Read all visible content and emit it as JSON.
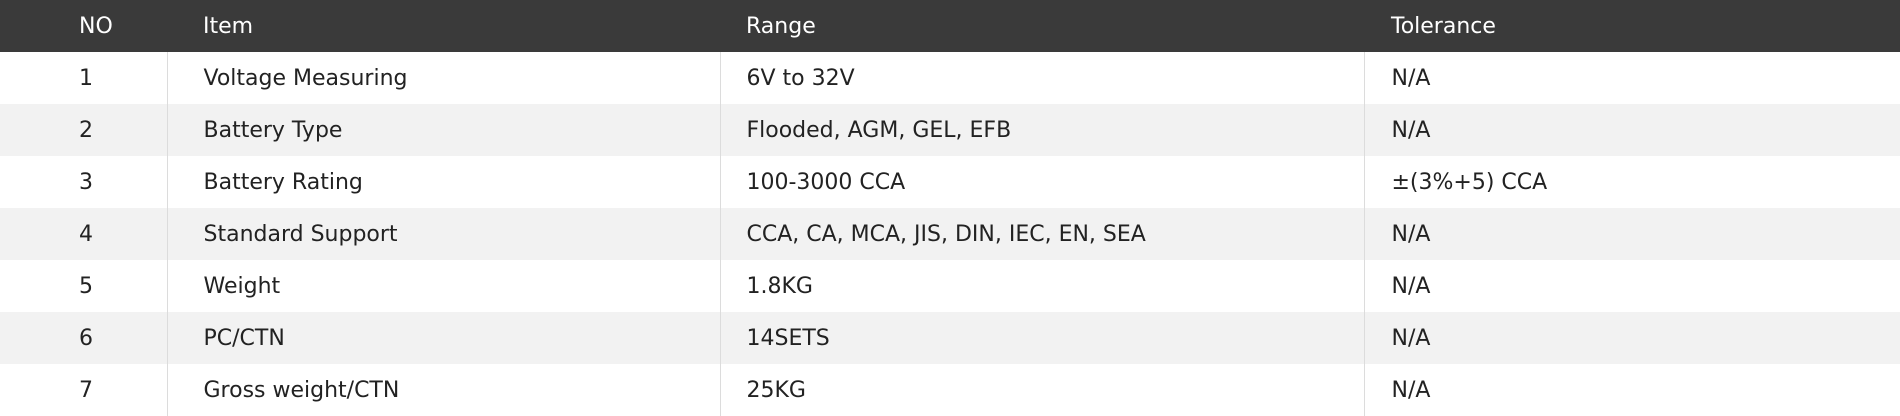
{
  "table": {
    "headers": [
      "NO",
      "Item",
      "Range",
      "Tolerance"
    ],
    "rows": [
      [
        "1",
        "Voltage Measuring",
        "6V to 32V",
        "N/A"
      ],
      [
        "2",
        "Battery Type",
        "Flooded, AGM, GEL, EFB",
        "N/A"
      ],
      [
        "3",
        "Battery Rating",
        "100-3000 CCA",
        "±(3%+5) CCA"
      ],
      [
        "4",
        "Standard Support",
        "CCA, CA, MCA, JIS, DIN, IEC, EN, SEA",
        "N/A"
      ],
      [
        "5",
        "Weight",
        "1.8KG",
        "N/A"
      ],
      [
        "6",
        "PC/CTN",
        "14SETS",
        "N/A"
      ],
      [
        "7",
        "Gross weight/CTN",
        "25KG",
        "N/A"
      ]
    ]
  },
  "colors": {
    "header_bg": "#3a3a3a",
    "stripe_bg": "#f2f2f2"
  }
}
